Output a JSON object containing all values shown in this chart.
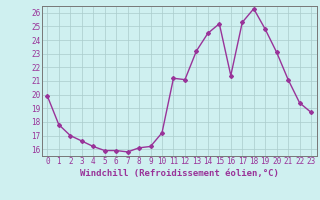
{
  "x": [
    0,
    1,
    2,
    3,
    4,
    5,
    6,
    7,
    8,
    9,
    10,
    11,
    12,
    13,
    14,
    15,
    16,
    17,
    18,
    19,
    20,
    21,
    22,
    23
  ],
  "y": [
    19.9,
    17.8,
    17.0,
    16.6,
    16.2,
    15.9,
    15.9,
    15.8,
    16.1,
    16.2,
    17.2,
    21.2,
    21.1,
    23.2,
    24.5,
    25.2,
    21.4,
    25.3,
    26.3,
    24.8,
    23.1,
    21.1,
    19.4,
    18.7
  ],
  "line_color": "#993399",
  "marker": "D",
  "marker_size": 2,
  "line_width": 1.0,
  "xlabel": "Windchill (Refroidissement éolien,°C)",
  "xlabel_fontsize": 6.5,
  "bg_color": "#cff0f0",
  "grid_color": "#aacccc",
  "tick_color": "#993399",
  "tick_fontsize": 5.5,
  "ytick_fontsize": 5.5,
  "ylim": [
    15.5,
    26.5
  ],
  "xlim": [
    -0.5,
    23.5
  ],
  "yticks": [
    16,
    17,
    18,
    19,
    20,
    21,
    22,
    23,
    24,
    25,
    26
  ],
  "xticks": [
    0,
    1,
    2,
    3,
    4,
    5,
    6,
    7,
    8,
    9,
    10,
    11,
    12,
    13,
    14,
    15,
    16,
    17,
    18,
    19,
    20,
    21,
    22,
    23
  ]
}
